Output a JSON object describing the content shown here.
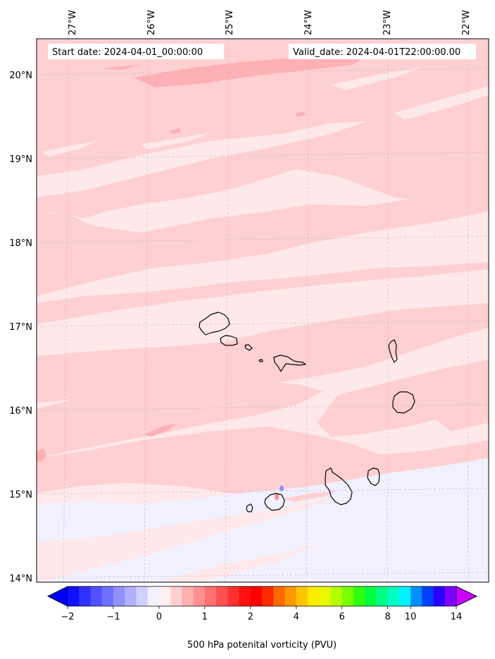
{
  "map": {
    "start_label": "Start date: 2024-04-01_00:00:00",
    "valid_label": "Valid_date: 2024-04-01T22:00:00.00",
    "lon_labels": [
      "27°W",
      "26°W",
      "25°W",
      "24°W",
      "23°W",
      "22°W"
    ],
    "lat_labels": [
      "20°N",
      "19°N",
      "18°N",
      "17°N",
      "16°N",
      "15°N",
      "14°N"
    ],
    "islands": [
      "Santo Antão",
      "São Vicente",
      "Santa Luzia",
      "Ilhéu Raso",
      "São Nicolau",
      "Sal",
      "Boa Vista",
      "Maio",
      "Santiago",
      "Fogo",
      "Brava"
    ]
  },
  "colorbar": {
    "title": "500 hPa potenital vorticity (PVU)",
    "tick_labels": [
      "−2",
      "−1",
      "0",
      "1",
      "2",
      "4",
      "6",
      "8",
      "10",
      "14"
    ],
    "levels": [
      -2,
      -1.75,
      -1.5,
      -1.25,
      -1,
      -0.75,
      -0.5,
      -0.25,
      0,
      0.25,
      0.5,
      0.75,
      1,
      1.25,
      1.5,
      1.75,
      2,
      2.5,
      3,
      3.5,
      4,
      4.5,
      5,
      5.5,
      6,
      6.5,
      7,
      7.5,
      8,
      9,
      10,
      11,
      12,
      13,
      14
    ],
    "colors": [
      "#1010ff",
      "#3030ff",
      "#5050ff",
      "#7070ff",
      "#9090ff",
      "#b0b0ff",
      "#d0d0ff",
      "#f0f0ff",
      "#fff0f0",
      "#ffd0d0",
      "#ffb0b0",
      "#ff9090",
      "#ff7070",
      "#ff5050",
      "#ff3030",
      "#ff1010",
      "#ff0000",
      "#ff2a00",
      "#ff6a00",
      "#ff9800",
      "#ffc400",
      "#ffeb00",
      "#e8f800",
      "#b4ff00",
      "#7aff00",
      "#30ff10",
      "#00ff40",
      "#00ff88",
      "#00ffc4",
      "#00f0ff",
      "#0090ff",
      "#0040ff",
      "#2a00ff",
      "#8000ff"
    ],
    "under_color": "#0000ff",
    "over_color": "#cc00ff"
  },
  "colors": {
    "background_field": "#ffe8ea",
    "pale_pink": "#ffd0d2",
    "pink": "#ffb0b4",
    "pale_blue": "#f0f0ff",
    "coastline": "#000000"
  }
}
